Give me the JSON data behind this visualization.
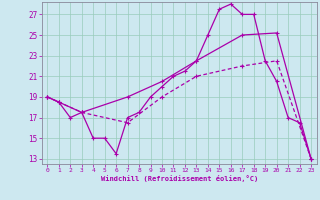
{
  "xlabel": "Windchill (Refroidissement éolien,°C)",
  "bg_color": "#cde8f0",
  "line_color": "#aa00aa",
  "grid_color": "#99ccbb",
  "x_ticks": [
    0,
    1,
    2,
    3,
    4,
    5,
    6,
    7,
    8,
    9,
    10,
    11,
    12,
    13,
    14,
    15,
    16,
    17,
    18,
    19,
    20,
    21,
    22,
    23
  ],
  "y_ticks": [
    13,
    15,
    17,
    19,
    21,
    23,
    25,
    27
  ],
  "ylim": [
    12.5,
    28.2
  ],
  "xlim": [
    -0.5,
    23.5
  ],
  "line1_x": [
    0,
    1,
    2,
    3,
    4,
    5,
    6,
    7,
    8,
    9,
    10,
    11,
    12,
    13,
    14,
    15,
    16,
    17,
    18,
    19,
    20,
    21,
    22,
    23
  ],
  "line1_y": [
    19,
    18.5,
    17,
    17.5,
    15,
    15,
    13.5,
    17,
    17.5,
    19,
    20,
    21,
    21.5,
    22.5,
    25,
    27.5,
    28,
    27,
    27,
    22.5,
    20.5,
    17,
    16.5,
    13
  ],
  "line2_x": [
    0,
    1,
    3,
    7,
    10,
    13,
    17,
    20,
    23
  ],
  "line2_y": [
    19,
    18.5,
    17.5,
    19,
    20.5,
    22.5,
    25,
    25.2,
    13
  ],
  "line3_x": [
    0,
    1,
    3,
    7,
    10,
    13,
    17,
    20,
    23
  ],
  "line3_y": [
    19,
    18.5,
    17.5,
    16.5,
    19,
    21,
    22,
    22.5,
    13
  ]
}
